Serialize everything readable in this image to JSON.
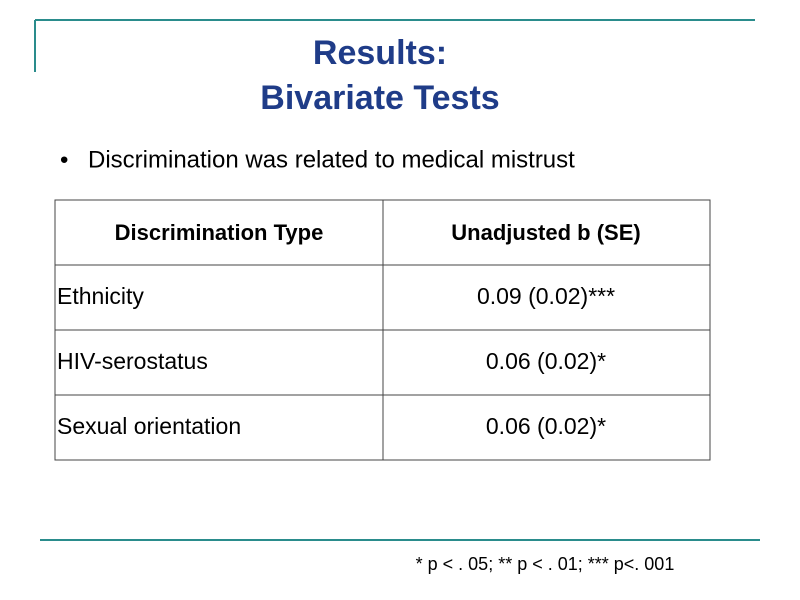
{
  "header": {
    "title": [
      "Results:",
      "Bivariate Tests"
    ]
  },
  "bullets": [
    "Discrimination was related to medical mistrust"
  ],
  "table": {
    "columns": [
      "Discrimination Type",
      "Unadjusted b (SE)"
    ],
    "rows": [
      [
        "Ethnicity",
        "0.09 (0.02)***"
      ],
      [
        "HIV-serostatus",
        "0.06 (0.02)*"
      ],
      [
        "Sexual orientation",
        "0.06 (0.02)*"
      ]
    ]
  },
  "footnote": "* p < . 05; ** p < . 01; *** p<. 001"
}
